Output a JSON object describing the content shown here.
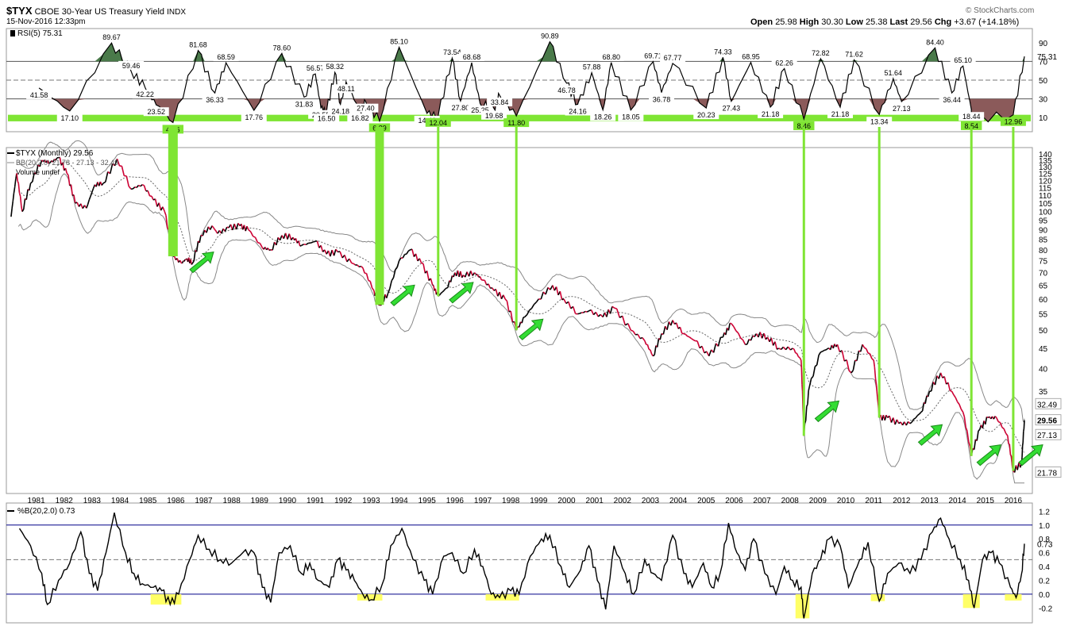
{
  "header": {
    "symbol": "$TYX",
    "description": "CBOE 30-Year US Treasury Yield",
    "exchange": "INDX",
    "date": "15-Nov-2016 12:33pm",
    "watermark": "© StockCharts.com",
    "open_label": "Open",
    "open": "25.98",
    "high_label": "High",
    "high": "30.30",
    "low_label": "Low",
    "low": "25.38",
    "last_label": "Last",
    "last": "29.56",
    "chg_label": "Chg",
    "chg": "+3.67 (+14.18%)"
  },
  "colors": {
    "price_up": "#000000",
    "price_down": "#cc0033",
    "band": "#888888",
    "mid_band": "#666666",
    "rsi_over": "#4a7a4a",
    "rsi_under": "#8b5a5a",
    "green_highlight": "#7fe534",
    "arrow": "#33dd33",
    "yellow_highlight": "#ffff66",
    "pctb_line": "#000000",
    "ref_line": "#000088"
  },
  "chart_data": [
    {
      "type": "line",
      "panel": "rsi",
      "title": "RSI(5) 75.31",
      "ylim": [
        0,
        100
      ],
      "y_ticks": [
        10,
        30,
        50,
        70,
        90
      ],
      "reference_lines": [
        30,
        50,
        70
      ],
      "current_value": "75.31",
      "annotations": [
        {
          "t": 1981.6,
          "v": 41.58,
          "text": "41.58"
        },
        {
          "t": 1982.7,
          "v": 17.1,
          "text": "17.10"
        },
        {
          "t": 1984.2,
          "v": 89.67,
          "text": "89.67"
        },
        {
          "t": 1984.9,
          "v": 59.46,
          "text": "59.46"
        },
        {
          "t": 1985.4,
          "v": 42.22,
          "text": "42.22"
        },
        {
          "t": 1985.8,
          "v": 23.52,
          "text": "23.52"
        },
        {
          "t": 1986.4,
          "v": 4.76,
          "text": "4.76"
        },
        {
          "t": 1987.3,
          "v": 81.68,
          "text": "81.68"
        },
        {
          "t": 1987.9,
          "v": 36.33,
          "text": "36.33"
        },
        {
          "t": 1988.3,
          "v": 68.59,
          "text": "68.59"
        },
        {
          "t": 1989.3,
          "v": 17.76,
          "text": "17.76"
        },
        {
          "t": 1990.3,
          "v": 78.6,
          "text": "78.60"
        },
        {
          "t": 1991.1,
          "v": 31.83,
          "text": "31.83"
        },
        {
          "t": 1991.5,
          "v": 56.57,
          "text": "56.57"
        },
        {
          "t": 1991.7,
          "v": 20.55,
          "text": "20.55"
        },
        {
          "t": 1991.9,
          "v": 16.5,
          "text": "16.50"
        },
        {
          "t": 1992.2,
          "v": 58.32,
          "text": "58.32"
        },
        {
          "t": 1992.4,
          "v": 24.18,
          "text": "24.18"
        },
        {
          "t": 1992.6,
          "v": 48.11,
          "text": "48.11"
        },
        {
          "t": 1993.1,
          "v": 16.82,
          "text": "16.82"
        },
        {
          "t": 1993.3,
          "v": 27.4,
          "text": "27.40"
        },
        {
          "t": 1993.8,
          "v": 6.39,
          "text": "6.39"
        },
        {
          "t": 1994.5,
          "v": 85.1,
          "text": "85.10"
        },
        {
          "t": 1995.5,
          "v": 14.46,
          "text": "14.46"
        },
        {
          "t": 1995.9,
          "v": 12.04,
          "text": "12.04"
        },
        {
          "t": 1996.4,
          "v": 73.54,
          "text": "73.54"
        },
        {
          "t": 1996.7,
          "v": 27.8,
          "text": "27.80"
        },
        {
          "t": 1997.1,
          "v": 68.68,
          "text": "68.68"
        },
        {
          "t": 1997.4,
          "v": 25.25,
          "text": "25.25"
        },
        {
          "t": 1997.9,
          "v": 19.68,
          "text": "19.68"
        },
        {
          "t": 1998.1,
          "v": 33.84,
          "text": "33.84"
        },
        {
          "t": 1998.7,
          "v": 11.8,
          "text": "11.80"
        },
        {
          "t": 1999.9,
          "v": 90.89,
          "text": "90.89"
        },
        {
          "t": 2000.5,
          "v": 46.78,
          "text": "46.78"
        },
        {
          "t": 2000.9,
          "v": 24.16,
          "text": "24.16"
        },
        {
          "t": 2001.4,
          "v": 57.88,
          "text": "57.88"
        },
        {
          "t": 2001.8,
          "v": 18.26,
          "text": "18.26"
        },
        {
          "t": 2002.1,
          "v": 68.8,
          "text": "68.80"
        },
        {
          "t": 2002.8,
          "v": 18.05,
          "text": "18.05"
        },
        {
          "t": 2003.6,
          "v": 69.71,
          "text": "69.71"
        },
        {
          "t": 2003.9,
          "v": 36.78,
          "text": "36.78"
        },
        {
          "t": 2004.3,
          "v": 67.77,
          "text": "67.77"
        },
        {
          "t": 2005.5,
          "v": 20.23,
          "text": "20.23"
        },
        {
          "t": 2006.1,
          "v": 74.33,
          "text": "74.33"
        },
        {
          "t": 2006.4,
          "v": 27.43,
          "text": "27.43"
        },
        {
          "t": 2007.1,
          "v": 68.95,
          "text": "68.95"
        },
        {
          "t": 2007.8,
          "v": 21.18,
          "text": "21.18"
        },
        {
          "t": 2008.3,
          "v": 62.26,
          "text": "62.26"
        },
        {
          "t": 2009.0,
          "v": 8.46,
          "text": "8.46"
        },
        {
          "t": 2009.6,
          "v": 72.82,
          "text": "72.82"
        },
        {
          "t": 2010.3,
          "v": 21.18,
          "text": "21.18"
        },
        {
          "t": 2010.8,
          "v": 71.62,
          "text": "71.62"
        },
        {
          "t": 2011.7,
          "v": 13.34,
          "text": "13.34"
        },
        {
          "t": 2012.2,
          "v": 51.64,
          "text": "51.64"
        },
        {
          "t": 2012.5,
          "v": 27.13,
          "text": "27.13"
        },
        {
          "t": 2013.7,
          "v": 84.4,
          "text": "84.40"
        },
        {
          "t": 2014.3,
          "v": 36.44,
          "text": "36.44"
        },
        {
          "t": 2014.7,
          "v": 65.1,
          "text": "65.10"
        },
        {
          "t": 2015.0,
          "v": 18.44,
          "text": "18.44"
        },
        {
          "t": 2015.0,
          "v": 8.54,
          "text": "8.54"
        },
        {
          "t": 2016.5,
          "v": 12.96,
          "text": "12.96"
        }
      ]
    },
    {
      "type": "line",
      "panel": "price",
      "series_name": "$TYX (Monthly) 29.56",
      "bb_label": "BB(20,2.0) 21.78 - 27.13 - 32.49",
      "volume_label": "Volume undef",
      "log_scale": true,
      "ylim": [
        20,
        140
      ],
      "y_ticks": [
        35,
        40,
        45,
        50,
        55,
        60,
        65,
        70,
        75,
        80,
        85,
        90,
        95,
        100,
        105,
        110,
        115,
        120,
        125,
        130,
        135,
        140
      ],
      "right_labels": {
        "upper": "32.49",
        "last": "29.56",
        "mid": "27.13",
        "lower": "21.78"
      },
      "x_ticks": [
        "1981",
        "1982",
        "1983",
        "1984",
        "1985",
        "1986",
        "1987",
        "1988",
        "1989",
        "1990",
        "1991",
        "1992",
        "1993",
        "1994",
        "1995",
        "1996",
        "1997",
        "1998",
        "1999",
        "2000",
        "2001",
        "2002",
        "2003",
        "2004",
        "2005",
        "2006",
        "2007",
        "2008",
        "2009",
        "2010",
        "2011",
        "2012",
        "2013",
        "2014",
        "2015",
        "2016"
      ],
      "keypoints": [
        [
          1980.6,
          97
        ],
        [
          1980.8,
          125
        ],
        [
          1981.0,
          100
        ],
        [
          1981.3,
          118
        ],
        [
          1981.7,
          135
        ],
        [
          1982.0,
          133
        ],
        [
          1982.3,
          137
        ],
        [
          1982.6,
          125
        ],
        [
          1982.9,
          105
        ],
        [
          1983.3,
          102
        ],
        [
          1983.6,
          117
        ],
        [
          1983.9,
          118
        ],
        [
          1984.4,
          136
        ],
        [
          1984.9,
          114
        ],
        [
          1985.3,
          117
        ],
        [
          1985.7,
          107
        ],
        [
          1986.1,
          100
        ],
        [
          1986.4,
          77
        ],
        [
          1986.7,
          74
        ],
        [
          1986.9,
          76
        ],
        [
          1987.1,
          74
        ],
        [
          1987.4,
          87
        ],
        [
          1987.8,
          92
        ],
        [
          1988.0,
          88
        ],
        [
          1988.4,
          91
        ],
        [
          1988.8,
          92
        ],
        [
          1989.1,
          90
        ],
        [
          1989.6,
          81
        ],
        [
          1989.9,
          80
        ],
        [
          1990.3,
          87
        ],
        [
          1990.7,
          86
        ],
        [
          1991.0,
          82
        ],
        [
          1991.5,
          84
        ],
        [
          1991.9,
          78
        ],
        [
          1992.3,
          79
        ],
        [
          1992.8,
          74
        ],
        [
          1993.2,
          72
        ],
        [
          1993.6,
          63
        ],
        [
          1993.8,
          58
        ],
        [
          1994.1,
          62
        ],
        [
          1994.5,
          75
        ],
        [
          1994.9,
          80
        ],
        [
          1995.3,
          74
        ],
        [
          1995.7,
          65
        ],
        [
          1995.9,
          61
        ],
        [
          1996.2,
          64
        ],
        [
          1996.5,
          70
        ],
        [
          1996.8,
          69
        ],
        [
          1997.2,
          70
        ],
        [
          1997.5,
          67
        ],
        [
          1997.9,
          63
        ],
        [
          1998.3,
          60
        ],
        [
          1998.7,
          50
        ],
        [
          1999.0,
          54
        ],
        [
          1999.5,
          60
        ],
        [
          2000.0,
          65
        ],
        [
          2000.4,
          60
        ],
        [
          2000.9,
          55
        ],
        [
          2001.3,
          56
        ],
        [
          2001.8,
          54
        ],
        [
          2002.2,
          57
        ],
        [
          2002.8,
          50
        ],
        [
          2003.3,
          47
        ],
        [
          2003.6,
          43
        ],
        [
          2003.9,
          49
        ],
        [
          2004.3,
          53
        ],
        [
          2004.7,
          49
        ],
        [
          2005.1,
          47
        ],
        [
          2005.6,
          43
        ],
        [
          2006.1,
          48
        ],
        [
          2006.4,
          52
        ],
        [
          2006.9,
          46
        ],
        [
          2007.3,
          49
        ],
        [
          2007.7,
          48
        ],
        [
          2008.1,
          45
        ],
        [
          2008.6,
          45
        ],
        [
          2008.9,
          42
        ],
        [
          2009.0,
          27
        ],
        [
          2009.2,
          36
        ],
        [
          2009.6,
          44
        ],
        [
          2009.9,
          45
        ],
        [
          2010.2,
          46
        ],
        [
          2010.7,
          39
        ],
        [
          2011.1,
          46
        ],
        [
          2011.5,
          42
        ],
        [
          2011.7,
          30
        ],
        [
          2012.0,
          30
        ],
        [
          2012.4,
          29
        ],
        [
          2012.8,
          29
        ],
        [
          2013.2,
          31
        ],
        [
          2013.5,
          35
        ],
        [
          2013.9,
          39
        ],
        [
          2014.3,
          35
        ],
        [
          2014.7,
          31
        ],
        [
          2015.0,
          24
        ],
        [
          2015.3,
          28
        ],
        [
          2015.6,
          30
        ],
        [
          2015.9,
          30
        ],
        [
          2016.3,
          27
        ],
        [
          2016.5,
          22
        ],
        [
          2016.8,
          23
        ],
        [
          2016.9,
          29.56
        ]
      ]
    },
    {
      "type": "line",
      "panel": "pctb",
      "title": "%B(20,2.0) 0.73",
      "ylim": [
        -0.3,
        1.25
      ],
      "y_ticks": [
        -0.2,
        0.0,
        0.2,
        0.4,
        0.6,
        0.8,
        1.0,
        1.2
      ],
      "reference_lines": [
        0.0,
        0.5,
        1.0
      ],
      "current_value": "0.73",
      "keypoints": [
        [
          1980.9,
          0.95
        ],
        [
          1981.3,
          0.7
        ],
        [
          1981.7,
          0.3
        ],
        [
          1981.9,
          -0.15
        ],
        [
          1982.3,
          0.2
        ],
        [
          1982.7,
          0.45
        ],
        [
          1983.1,
          0.9
        ],
        [
          1983.4,
          0.3
        ],
        [
          1983.7,
          0.05
        ],
        [
          1984.0,
          0.6
        ],
        [
          1984.3,
          1.18
        ],
        [
          1984.7,
          0.6
        ],
        [
          1985.0,
          0.3
        ],
        [
          1985.3,
          0.15
        ],
        [
          1985.7,
          0.1
        ],
        [
          1986.0,
          0.05
        ],
        [
          1986.3,
          -0.15
        ],
        [
          1986.6,
          0.0
        ],
        [
          1987.0,
          0.5
        ],
        [
          1987.3,
          0.85
        ],
        [
          1987.7,
          0.65
        ],
        [
          1988.1,
          0.5
        ],
        [
          1988.5,
          0.45
        ],
        [
          1988.9,
          0.6
        ],
        [
          1989.3,
          0.6
        ],
        [
          1989.6,
          0.1
        ],
        [
          1989.9,
          -0.12
        ],
        [
          1990.2,
          0.6
        ],
        [
          1990.6,
          0.7
        ],
        [
          1991.0,
          0.3
        ],
        [
          1991.3,
          0.45
        ],
        [
          1991.6,
          0.2
        ],
        [
          1992.0,
          0.1
        ],
        [
          1992.3,
          0.5
        ],
        [
          1992.6,
          0.35
        ],
        [
          1992.9,
          0.2
        ],
        [
          1993.2,
          0.0
        ],
        [
          1993.5,
          -0.08
        ],
        [
          1993.9,
          0.15
        ],
        [
          1994.2,
          0.7
        ],
        [
          1994.6,
          0.95
        ],
        [
          1995.0,
          0.5
        ],
        [
          1995.4,
          0.2
        ],
        [
          1995.7,
          0.0
        ],
        [
          1996.1,
          0.55
        ],
        [
          1996.4,
          0.6
        ],
        [
          1996.8,
          0.3
        ],
        [
          1997.2,
          0.65
        ],
        [
          1997.5,
          0.4
        ],
        [
          1997.8,
          0.0
        ],
        [
          1998.1,
          -0.05
        ],
        [
          1998.5,
          0.05
        ],
        [
          1998.8,
          0.0
        ],
        [
          1999.2,
          0.55
        ],
        [
          1999.6,
          0.8
        ],
        [
          1999.9,
          0.85
        ],
        [
          2000.3,
          0.4
        ],
        [
          2000.6,
          0.1
        ],
        [
          2001.0,
          0.35
        ],
        [
          2001.3,
          0.7
        ],
        [
          2001.6,
          0.2
        ],
        [
          2001.9,
          -0.22
        ],
        [
          2002.2,
          0.7
        ],
        [
          2002.6,
          0.3
        ],
        [
          2002.9,
          0.0
        ],
        [
          2003.3,
          0.5
        ],
        [
          2003.6,
          0.3
        ],
        [
          2003.9,
          0.2
        ],
        [
          2004.3,
          0.85
        ],
        [
          2004.7,
          0.3
        ],
        [
          2005.0,
          0.1
        ],
        [
          2005.4,
          0.45
        ],
        [
          2005.7,
          0.1
        ],
        [
          2006.0,
          0.3
        ],
        [
          2006.3,
          1.03
        ],
        [
          2006.6,
          0.6
        ],
        [
          2006.9,
          0.35
        ],
        [
          2007.2,
          0.8
        ],
        [
          2007.6,
          0.3
        ],
        [
          2008.0,
          0.0
        ],
        [
          2008.3,
          0.4
        ],
        [
          2008.6,
          0.2
        ],
        [
          2008.9,
          0.1
        ],
        [
          2009.0,
          -0.35
        ],
        [
          2009.3,
          0.3
        ],
        [
          2009.6,
          0.5
        ],
        [
          2009.9,
          0.8
        ],
        [
          2010.3,
          0.7
        ],
        [
          2010.6,
          0.1
        ],
        [
          2011.0,
          0.5
        ],
        [
          2011.3,
          0.75
        ],
        [
          2011.7,
          -0.1
        ],
        [
          2012.0,
          0.3
        ],
        [
          2012.4,
          0.45
        ],
        [
          2012.8,
          0.3
        ],
        [
          2013.2,
          0.5
        ],
        [
          2013.6,
          0.9
        ],
        [
          2013.9,
          1.1
        ],
        [
          2014.2,
          0.8
        ],
        [
          2014.6,
          0.5
        ],
        [
          2014.9,
          0.2
        ],
        [
          2015.1,
          -0.2
        ],
        [
          2015.4,
          0.5
        ],
        [
          2015.7,
          0.6
        ],
        [
          2016.0,
          0.45
        ],
        [
          2016.4,
          0.1
        ],
        [
          2016.6,
          -0.05
        ],
        [
          2016.8,
          0.3
        ],
        [
          2016.9,
          0.73
        ]
      ]
    }
  ]
}
